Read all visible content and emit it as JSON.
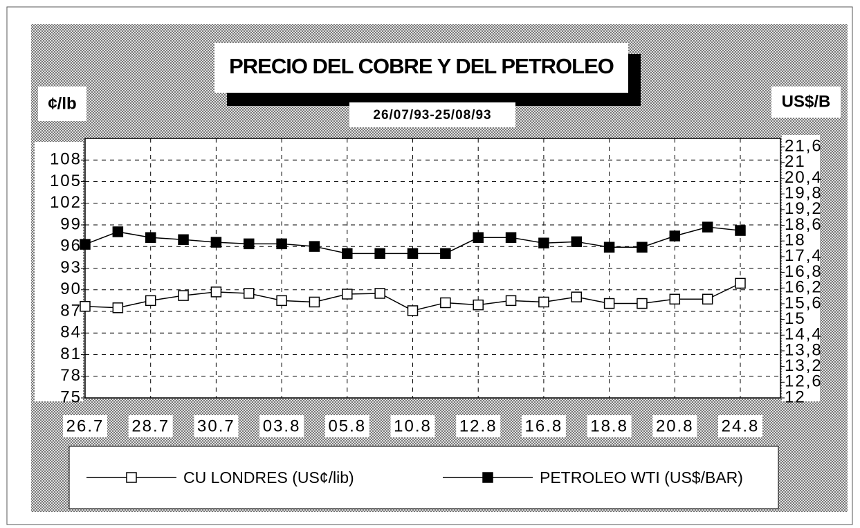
{
  "chart_data": {
    "type": "line",
    "title": "PRECIO DEL COBRE Y DEL PETROLEO",
    "subtitle": "26/07/93-25/08/93",
    "y_label": "¢/lb",
    "y2_label": "US$/B",
    "categories": [
      "26.7",
      null,
      "28.7",
      null,
      "30.7",
      null,
      "03.8",
      null,
      "05.8",
      null,
      "10.8",
      null,
      "12.8",
      null,
      "16.8",
      null,
      "18.8",
      null,
      "20.8",
      null,
      "24.8"
    ],
    "series": [
      {
        "name": "CU LONDRES (US¢/lib)",
        "color": "#000000",
        "marker_fill": "#ffffff",
        "values": [
          87.7,
          87.5,
          88.5,
          89.2,
          89.7,
          89.5,
          88.5,
          88.3,
          89.4,
          89.5,
          87.1,
          88.2,
          87.9,
          88.5,
          88.3,
          89.0,
          88.1,
          88.1,
          88.7,
          88.7,
          90.9
        ]
      },
      {
        "name": "PETROLEO WTI (US$/BAR)",
        "color": "#000000",
        "marker_fill": "#000000",
        "axis": "y2",
        "values": [
          17.87,
          18.35,
          18.13,
          18.05,
          17.95,
          17.89,
          17.89,
          17.79,
          17.52,
          17.52,
          17.52,
          17.52,
          18.13,
          18.13,
          17.92,
          17.97,
          17.76,
          17.76,
          18.19,
          18.53,
          18.4
        ]
      }
    ],
    "ylim": [
      75,
      111
    ],
    "yticks": [
      75,
      78,
      81,
      84,
      87,
      90,
      93,
      96,
      99,
      102,
      105,
      108
    ],
    "y2lim": [
      12,
      21.92
    ],
    "y2ticks": [
      12,
      {
        "value": 12.6,
        "label": "12,6"
      },
      {
        "value": 13.2,
        "label": "13,2"
      },
      {
        "value": 13.8,
        "label": "13,8"
      },
      {
        "value": 14.4,
        "label": "14,4"
      },
      15,
      {
        "value": 15.6,
        "label": "15,6"
      },
      {
        "value": 16.2,
        "label": "16,2"
      },
      {
        "value": 16.8,
        "label": "16,8"
      },
      {
        "value": 17.4,
        "label": "17,4"
      },
      18,
      {
        "value": 18.6,
        "label": "18,6"
      },
      {
        "value": 19.2,
        "label": "19,2"
      },
      {
        "value": 19.8,
        "label": "19,8"
      },
      {
        "value": 20.4,
        "label": "20,4"
      },
      21,
      {
        "value": 21.6,
        "label": "21,6"
      }
    ],
    "grid": true,
    "legend": "bottom"
  }
}
